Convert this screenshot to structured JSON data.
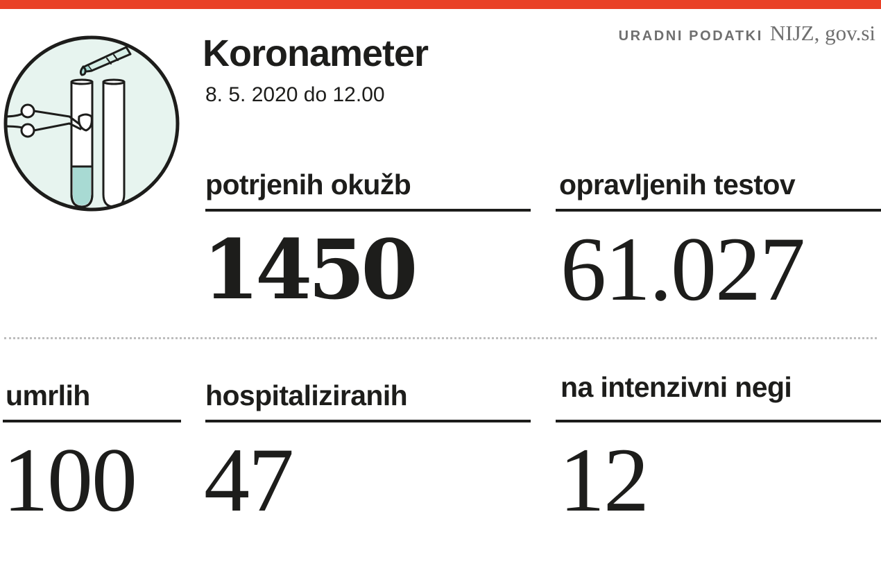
{
  "header": {
    "title": "Koronameter",
    "date": "8. 5. 2020 do 12.00",
    "source_label": "URADNI PODATKI",
    "source_value": "NIJZ, gov.si"
  },
  "stats": {
    "confirmed": {
      "label": "potrjenih okužb",
      "value": "1450"
    },
    "tests": {
      "label": "opravljenih testov",
      "value": "61.027"
    },
    "deaths": {
      "label": "umrlih",
      "value": "100"
    },
    "hospitalized": {
      "label": "hospitaliziranih",
      "value": "47"
    },
    "icu": {
      "label": "na intenzivni negi",
      "value": "12"
    }
  },
  "colors": {
    "accent_bar": "#e94126",
    "text": "#1d1d1b",
    "logo_background": "#e7f4ef",
    "liquid": "#a8dad3",
    "source_text": "#6f6f6f"
  },
  "icons": {
    "logo": "test-tubes-illustration"
  }
}
